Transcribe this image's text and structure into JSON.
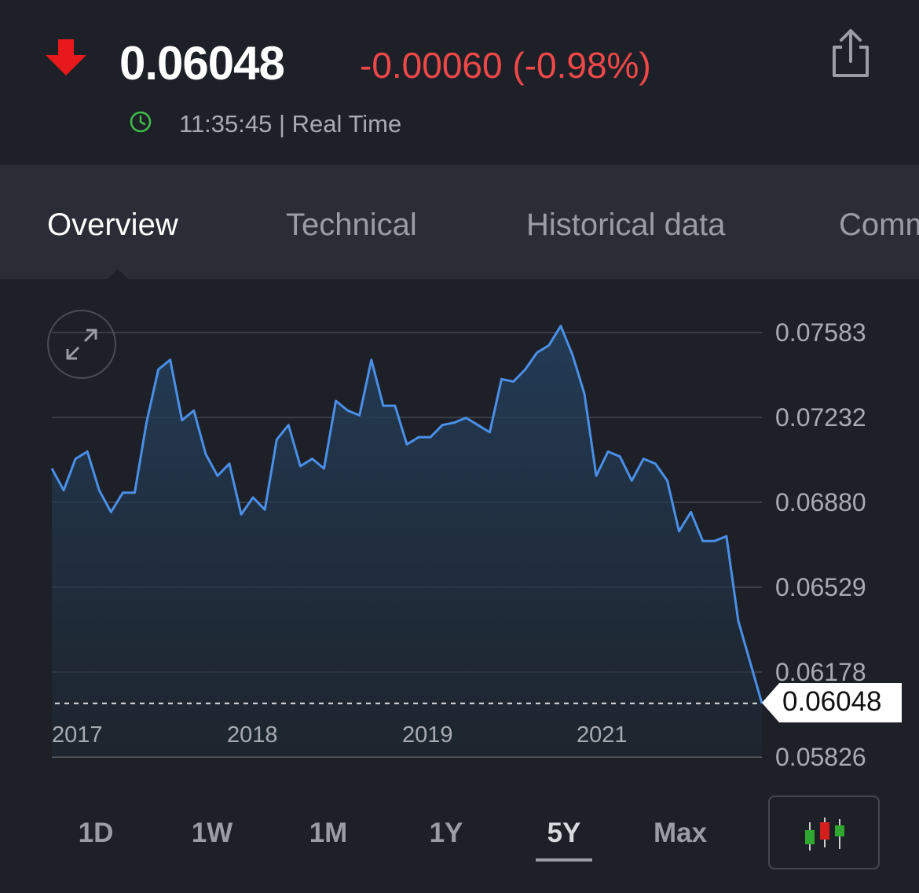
{
  "quote": {
    "price": "0.06048",
    "change": "-0.00060 (-0.98%)",
    "direction_icon": "down-arrow-icon",
    "time": "11:35:45 | Real Time",
    "colors": {
      "down": "#f04848",
      "realtime": "#3fbf4a",
      "line": "#4a8fe8"
    }
  },
  "tabs": [
    {
      "label": "Overview",
      "active": true
    },
    {
      "label": "Technical",
      "active": false
    },
    {
      "label": "Historical data",
      "active": false
    },
    {
      "label": "Comm",
      "active": false
    }
  ],
  "chart_data": {
    "type": "area",
    "y_ticks": [
      "0.07583",
      "0.07232",
      "0.06880",
      "0.06529",
      "0.06178",
      "0.05826"
    ],
    "ylim": [
      0.05826,
      0.07583
    ],
    "x_ticks": [
      "2017",
      "2018",
      "2019",
      "2021"
    ],
    "grid": true,
    "last_value": "0.06048",
    "series": [
      {
        "values": [
          0.0702,
          0.0693,
          0.0706,
          0.0709,
          0.0693,
          0.0684,
          0.0692,
          0.0692,
          0.0721,
          0.0743,
          0.0747,
          0.0722,
          0.0726,
          0.0708,
          0.0699,
          0.0704,
          0.0683,
          0.069,
          0.0685,
          0.0714,
          0.072,
          0.0703,
          0.0706,
          0.0702,
          0.073,
          0.0726,
          0.0724,
          0.0747,
          0.0728,
          0.0728,
          0.0712,
          0.0715,
          0.0715,
          0.072,
          0.0721,
          0.0723,
          0.072,
          0.0717,
          0.0739,
          0.0738,
          0.0743,
          0.075,
          0.0753,
          0.0761,
          0.0749,
          0.0733,
          0.0699,
          0.0709,
          0.0707,
          0.0697,
          0.0706,
          0.0704,
          0.0697,
          0.0676,
          0.0684,
          0.0672,
          0.0672,
          0.0674,
          0.0639,
          0.0622,
          0.06048
        ]
      }
    ]
  },
  "ranges": [
    {
      "label": "1D",
      "active": false
    },
    {
      "label": "1W",
      "active": false
    },
    {
      "label": "1M",
      "active": false
    },
    {
      "label": "1Y",
      "active": false
    },
    {
      "label": "5Y",
      "active": true
    },
    {
      "label": "Max",
      "active": false
    }
  ]
}
